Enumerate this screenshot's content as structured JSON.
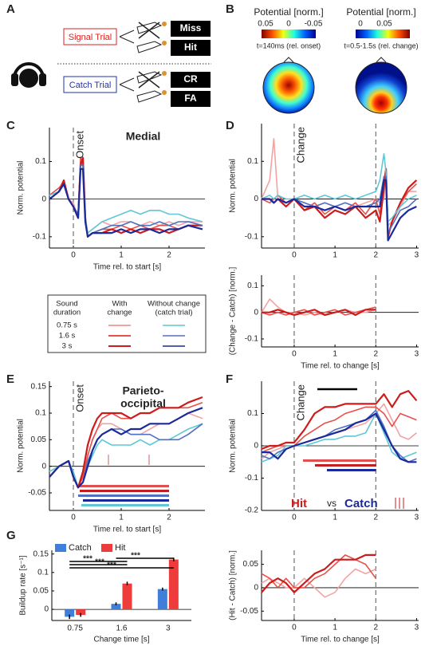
{
  "panel_a": {
    "label": "A",
    "signal_trial": "Signal Trial",
    "catch_trial": "Catch Trial",
    "outcomes": [
      "Miss",
      "Hit",
      "CR",
      "FA"
    ]
  },
  "panel_b": {
    "label": "B",
    "maps": [
      {
        "title": "Potential [norm.]",
        "colorbar_ticks": [
          "0.05",
          "0",
          "-0.05"
        ],
        "time": "t=140ms (rel. onset)"
      },
      {
        "title": "Potential [norm.]",
        "colorbar_ticks": [
          "0",
          "0.05"
        ],
        "time": "t=0.5-1.5s (rel. change)"
      }
    ]
  },
  "chart_data": [
    {
      "type": "line",
      "panel_label": "C",
      "title": "Medial",
      "annotation": "Onset",
      "event_lines": [
        0
      ],
      "ylabel": "Norm. potential",
      "xlabel": "Time rel. to start [s]",
      "xlim": [
        -0.5,
        2.75
      ],
      "ylim": [
        -0.13,
        0.19
      ],
      "xticks": [
        0,
        1,
        2
      ],
      "yticks": [
        -0.1,
        0,
        0.1
      ],
      "x": [
        -0.5,
        -0.3,
        -0.2,
        -0.1,
        0,
        0.1,
        0.15,
        0.2,
        0.25,
        0.3,
        0.4,
        0.6,
        0.8,
        1.0,
        1.2,
        1.4,
        1.6,
        1.8,
        2.0,
        2.2,
        2.4,
        2.7
      ],
      "series": [
        {
          "color": "#f2a3a3",
          "values": [
            0.01,
            0.03,
            0.05,
            0.0,
            -0.01,
            -0.05,
            0.1,
            0.09,
            -0.05,
            -0.09,
            -0.08,
            -0.06,
            -0.07,
            -0.06,
            -0.06,
            -0.07,
            -0.06,
            -0.07,
            -0.06,
            -0.07,
            -0.06,
            -0.06
          ]
        },
        {
          "color": "#e8504a",
          "values": [
            0.01,
            0.03,
            0.04,
            0.0,
            -0.02,
            -0.04,
            0.11,
            0.1,
            -0.06,
            -0.1,
            -0.09,
            -0.08,
            -0.08,
            -0.07,
            -0.08,
            -0.07,
            -0.08,
            -0.07,
            -0.07,
            -0.08,
            -0.07,
            -0.07
          ]
        },
        {
          "color": "#cc1c1c",
          "values": [
            0.0,
            0.02,
            0.05,
            0.0,
            -0.02,
            -0.05,
            0.09,
            0.11,
            -0.05,
            -0.1,
            -0.09,
            -0.09,
            -0.08,
            -0.09,
            -0.08,
            -0.09,
            -0.08,
            -0.08,
            -0.09,
            -0.08,
            -0.07,
            -0.07
          ]
        },
        {
          "color": "#5ec8d8",
          "values": [
            0.01,
            0.02,
            0.04,
            0.0,
            -0.02,
            -0.04,
            0.08,
            0.08,
            -0.05,
            -0.09,
            -0.08,
            -0.06,
            -0.05,
            -0.04,
            -0.03,
            -0.04,
            -0.03,
            -0.03,
            -0.04,
            -0.04,
            -0.05,
            -0.06
          ]
        },
        {
          "color": "#5070c0",
          "values": [
            0.0,
            0.02,
            0.04,
            0.0,
            -0.02,
            -0.04,
            0.09,
            0.09,
            -0.06,
            -0.1,
            -0.09,
            -0.08,
            -0.07,
            -0.07,
            -0.06,
            -0.07,
            -0.07,
            -0.06,
            -0.07,
            -0.06,
            -0.06,
            -0.07
          ]
        },
        {
          "color": "#1a2a9a",
          "values": [
            0.0,
            0.02,
            0.04,
            0.0,
            -0.02,
            -0.05,
            0.08,
            0.08,
            -0.06,
            -0.1,
            -0.09,
            -0.09,
            -0.09,
            -0.08,
            -0.09,
            -0.08,
            -0.08,
            -0.09,
            -0.08,
            -0.08,
            -0.07,
            -0.08
          ]
        }
      ],
      "legend": {
        "headers": [
          [
            "Sound",
            "duration"
          ],
          [
            "With",
            "change"
          ],
          [
            "Without change",
            "(catch trial)"
          ]
        ],
        "rows": [
          "0.75 s",
          "1.6 s",
          "3 s"
        ]
      }
    },
    {
      "type": "line",
      "panel_label": "D",
      "annotation": "Change",
      "event_lines": [
        0,
        2
      ],
      "ylabel": "Norm. potential",
      "xlim": [
        -0.8,
        3.05
      ],
      "ylim": [
        -0.13,
        0.2
      ],
      "xticks": [
        0,
        1,
        2,
        3
      ],
      "yticks": [
        -0.1,
        0,
        0.1
      ],
      "x": [
        -0.8,
        -0.6,
        -0.5,
        -0.4,
        -0.2,
        0,
        0.25,
        0.5,
        0.75,
        1.0,
        1.25,
        1.5,
        1.75,
        2.0,
        2.1,
        2.2,
        2.25,
        2.3,
        2.4,
        2.6,
        2.8,
        3.0
      ],
      "series": [
        {
          "color": "#f2a3a3",
          "values": [
            0,
            0.05,
            0.16,
            0.0,
            -0.01,
            0.0,
            -0.01,
            -0.02,
            -0.01,
            -0.02,
            -0.01,
            -0.02,
            -0.01,
            0.0,
            -0.01,
            0.0,
            0.08,
            -0.07,
            -0.06,
            -0.02,
            0.02,
            0.02
          ]
        },
        {
          "color": "#e8504a",
          "values": [
            0,
            -0.01,
            0.0,
            0.01,
            -0.01,
            0.0,
            -0.03,
            -0.01,
            -0.04,
            -0.02,
            -0.03,
            -0.01,
            -0.04,
            0.0,
            -0.04,
            0.05,
            0.08,
            -0.1,
            -0.06,
            -0.01,
            0.02,
            0.04
          ]
        },
        {
          "color": "#cc1c1c",
          "values": [
            0.0,
            0.0,
            -0.01,
            0.0,
            -0.02,
            0.0,
            -0.03,
            -0.02,
            -0.05,
            -0.03,
            -0.04,
            -0.02,
            -0.05,
            -0.03,
            -0.06,
            0.03,
            0.08,
            -0.1,
            -0.06,
            -0.01,
            0.03,
            0.05
          ]
        },
        {
          "color": "#5ec8d8",
          "values": [
            0.0,
            0.01,
            0.0,
            0.01,
            0.0,
            0.0,
            0.01,
            0.0,
            0.01,
            0.0,
            0.01,
            0.0,
            0.01,
            0.02,
            0.05,
            0.12,
            0.07,
            -0.06,
            -0.05,
            -0.02,
            0.0,
            0.01
          ]
        },
        {
          "color": "#5070c0",
          "values": [
            0.0,
            0.0,
            -0.01,
            0.0,
            -0.01,
            0.0,
            -0.01,
            -0.02,
            -0.01,
            -0.02,
            -0.01,
            -0.02,
            -0.02,
            -0.01,
            0.0,
            0.06,
            0.06,
            -0.09,
            -0.07,
            -0.03,
            -0.02,
            0.0
          ]
        },
        {
          "color": "#1a2a9a",
          "values": [
            0.0,
            0.0,
            -0.01,
            0.0,
            -0.01,
            0.0,
            -0.02,
            -0.02,
            -0.03,
            -0.02,
            -0.03,
            -0.02,
            -0.02,
            -0.02,
            -0.02,
            0.05,
            0.05,
            -0.11,
            -0.09,
            -0.05,
            -0.03,
            -0.02
          ]
        }
      ]
    },
    {
      "type": "line",
      "event_lines": [
        0,
        2
      ],
      "ylabel": "(Change - Catch) [norm.]",
      "xlabel": "Time rel. to change [s]",
      "xlim": [
        -0.8,
        3.05
      ],
      "ylim": [
        -0.13,
        0.14
      ],
      "xticks": [
        0,
        1,
        2,
        3
      ],
      "yticks": [
        -0.1,
        0,
        0.1
      ],
      "x": [
        -0.8,
        -0.6,
        -0.4,
        -0.2,
        0,
        0.25,
        0.5,
        0.75,
        1.0,
        1.25,
        1.5,
        1.75,
        2.0
      ],
      "series": [
        {
          "color": "#f2a3a3",
          "values": [
            0.0,
            0.05,
            0.02,
            0.0,
            0.0,
            -0.01,
            0.0,
            -0.01,
            0.0,
            0.01,
            0.0,
            0.0,
            0.01
          ]
        },
        {
          "color": "#e8504a",
          "values": [
            0.0,
            -0.01,
            0.0,
            -0.01,
            0.0,
            0.01,
            -0.01,
            0.0,
            0.01,
            -0.01,
            0.0,
            0.01,
            0.02
          ]
        },
        {
          "color": "#cc1c1c",
          "values": [
            0.0,
            0.0,
            0.01,
            0.0,
            -0.01,
            0.0,
            0.01,
            -0.01,
            0.0,
            0.01,
            -0.01,
            0.01,
            0.01
          ]
        }
      ]
    },
    {
      "type": "line",
      "panel_label": "E",
      "title_lines": [
        "Parieto-",
        "occipital"
      ],
      "annotation": "Onset",
      "event_lines": [
        0
      ],
      "ylabel": "Norm. potential",
      "xlabel": "Time rel. to start [s]",
      "xlim": [
        -0.5,
        2.75
      ],
      "ylim": [
        -0.083,
        0.16
      ],
      "xticks": [
        0,
        1,
        2
      ],
      "yticks": [
        -0.05,
        0,
        0.05,
        0.1,
        0.15
      ],
      "x": [
        -0.5,
        -0.3,
        -0.1,
        0,
        0.1,
        0.2,
        0.3,
        0.4,
        0.5,
        0.6,
        0.8,
        1.0,
        1.2,
        1.4,
        1.6,
        1.8,
        2.0,
        2.2,
        2.4,
        2.7
      ],
      "series": [
        {
          "color": "#f2a3a3",
          "values": [
            -0.01,
            0.0,
            0.01,
            -0.01,
            -0.04,
            -0.02,
            0.02,
            0.05,
            0.07,
            0.08,
            0.08,
            0.07,
            0.06,
            0.06,
            0.07,
            0.08,
            0.08,
            0.09,
            0.1,
            0.09
          ]
        },
        {
          "color": "#e8504a",
          "values": [
            -0.02,
            0.0,
            0.01,
            -0.02,
            -0.04,
            -0.02,
            0.02,
            0.05,
            0.07,
            0.09,
            0.1,
            0.09,
            0.09,
            0.1,
            0.1,
            0.11,
            0.11,
            0.11,
            0.11,
            0.12
          ]
        },
        {
          "color": "#cc1c1c",
          "values": [
            -0.02,
            0.0,
            0.01,
            -0.02,
            -0.04,
            -0.01,
            0.04,
            0.07,
            0.09,
            0.1,
            0.1,
            0.1,
            0.09,
            0.1,
            0.1,
            0.11,
            0.11,
            0.11,
            0.12,
            0.13
          ]
        },
        {
          "color": "#5ec8d8",
          "values": [
            -0.01,
            0.0,
            0.01,
            -0.01,
            -0.04,
            -0.03,
            0.0,
            0.02,
            0.04,
            0.05,
            0.04,
            0.04,
            0.04,
            0.05,
            0.04,
            0.05,
            0.05,
            0.06,
            0.07,
            0.08
          ]
        },
        {
          "color": "#5070c0",
          "values": [
            -0.02,
            0.0,
            0.01,
            -0.02,
            -0.04,
            -0.03,
            0.01,
            0.03,
            0.05,
            0.06,
            0.07,
            0.07,
            0.06,
            0.06,
            0.06,
            0.05,
            0.05,
            0.05,
            0.06,
            0.08
          ]
        },
        {
          "color": "#1a2a9a",
          "values": [
            -0.02,
            0.0,
            0.01,
            -0.02,
            -0.04,
            -0.03,
            0.0,
            0.03,
            0.05,
            0.06,
            0.07,
            0.06,
            0.07,
            0.07,
            0.08,
            0.08,
            0.08,
            0.09,
            0.1,
            0.11
          ]
        }
      ]
    },
    {
      "type": "line",
      "panel_label": "F",
      "annotation": "Change",
      "event_lines": [
        0,
        2
      ],
      "ylabel": "Norm. potential",
      "labels": [
        "Hit",
        "vs",
        "Catch"
      ],
      "xlim": [
        -0.8,
        3.05
      ],
      "ylim": [
        -0.2,
        0.2
      ],
      "xticks": [
        0,
        1,
        2,
        3
      ],
      "yticks": [
        -0.2,
        -0.1,
        0,
        0.1
      ],
      "x": [
        -0.8,
        -0.6,
        -0.4,
        -0.2,
        0,
        0.25,
        0.5,
        0.75,
        1.0,
        1.25,
        1.5,
        1.75,
        2.0,
        2.2,
        2.4,
        2.6,
        2.8,
        3.0
      ],
      "series": [
        {
          "color": "#f2a3a3",
          "values": [
            -0.04,
            -0.02,
            -0.01,
            0.0,
            0.0,
            0.01,
            0.02,
            0.03,
            0.04,
            0.05,
            0.06,
            0.07,
            0.1,
            0.13,
            0.08,
            0.03,
            0.02,
            0.04
          ]
        },
        {
          "color": "#e8504a",
          "values": [
            -0.02,
            -0.01,
            0.0,
            0.0,
            0.0,
            0.03,
            0.05,
            0.07,
            0.08,
            0.1,
            0.11,
            0.12,
            0.12,
            0.1,
            0.06,
            0.1,
            0.09,
            0.08
          ]
        },
        {
          "color": "#cc1c1c",
          "values": [
            -0.01,
            0.0,
            0.0,
            0.01,
            0.01,
            0.05,
            0.1,
            0.12,
            0.12,
            0.13,
            0.13,
            0.13,
            0.13,
            0.16,
            0.12,
            0.16,
            0.17,
            0.14
          ]
        },
        {
          "color": "#5ec8d8",
          "values": [
            -0.05,
            -0.04,
            -0.03,
            0.0,
            0.0,
            0.0,
            0.01,
            0.02,
            0.02,
            0.03,
            0.03,
            0.04,
            0.1,
            0.04,
            -0.02,
            -0.04,
            -0.03,
            -0.02
          ]
        },
        {
          "color": "#5070c0",
          "values": [
            -0.03,
            -0.04,
            -0.02,
            -0.01,
            0.0,
            0.01,
            0.02,
            0.03,
            0.05,
            0.06,
            0.07,
            0.08,
            0.11,
            0.06,
            0.0,
            -0.03,
            -0.05,
            -0.04
          ]
        },
        {
          "color": "#1a2a9a",
          "values": [
            -0.02,
            -0.02,
            -0.04,
            -0.01,
            0.0,
            0.01,
            0.02,
            0.03,
            0.04,
            0.05,
            0.07,
            0.08,
            0.1,
            0.05,
            0.0,
            -0.04,
            -0.05,
            -0.05
          ]
        }
      ]
    },
    {
      "type": "line",
      "event_lines": [
        0,
        2
      ],
      "ylabel": "(Hit - Catch) [norm.]",
      "xlabel": "Time rel. to change [s]",
      "xlim": [
        -0.8,
        3.05
      ],
      "ylim": [
        -0.07,
        0.08
      ],
      "xticks": [
        0,
        1,
        2,
        3
      ],
      "yticks": [
        -0.05,
        0,
        0.05
      ],
      "x": [
        -0.8,
        -0.6,
        -0.4,
        -0.2,
        0,
        0.25,
        0.5,
        0.75,
        1.0,
        1.25,
        1.5,
        1.75,
        2.0
      ],
      "series": [
        {
          "color": "#f2a3a3",
          "values": [
            0.01,
            0.02,
            0.01,
            0.0,
            0.0,
            0.02,
            0.0,
            -0.02,
            -0.01,
            0.02,
            0.04,
            0.03,
            0.04
          ]
        },
        {
          "color": "#e8504a",
          "values": [
            0.03,
            0.02,
            0.0,
            0.02,
            0.0,
            0.0,
            0.02,
            0.03,
            0.05,
            0.07,
            0.06,
            0.05,
            0.02
          ]
        },
        {
          "color": "#cc1c1c",
          "values": [
            -0.01,
            0.01,
            0.02,
            0.01,
            -0.01,
            0.01,
            0.03,
            0.04,
            0.06,
            0.06,
            0.06,
            0.07,
            0.07
          ]
        }
      ]
    },
    {
      "type": "bar",
      "panel_label": "G",
      "ylabel": "Buildup rate [s⁻¹]",
      "xlabel": "Change time [s]",
      "categories": [
        "0.75",
        "1.6",
        "3"
      ],
      "ylim": [
        -0.03,
        0.16
      ],
      "yticks": [
        0,
        0.05,
        0.1,
        0.15
      ],
      "series": [
        {
          "name": "Catch",
          "color": "#3f7fd9",
          "values": [
            -0.02,
            0.015,
            0.055
          ],
          "errors": [
            0.006,
            0.004,
            0.004
          ]
        },
        {
          "name": "Hit",
          "color": "#ee3b3b",
          "values": [
            -0.015,
            0.07,
            0.135
          ],
          "errors": [
            0.005,
            0.005,
            0.005
          ]
        }
      ],
      "annotations": [
        "***",
        "***",
        "***",
        "***"
      ]
    }
  ]
}
